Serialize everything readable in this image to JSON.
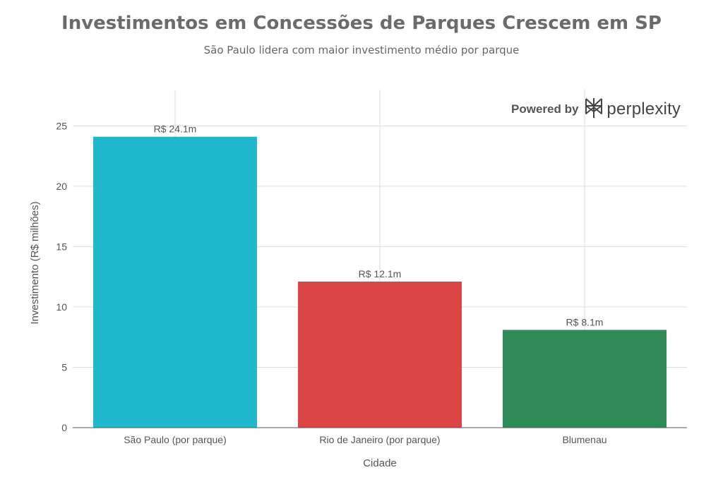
{
  "chart_data": {
    "type": "bar",
    "title": "Investimentos em Concessões de Parques Crescem em SP",
    "subtitle": "São Paulo lidera com maior investimento médio por parque",
    "xlabel": "Cidade",
    "ylabel": "Investimento (R$ milhões)",
    "categories": [
      "São Paulo (por parque)",
      "Rio de Janeiro (por parque)",
      "Blumenau"
    ],
    "values": [
      24.1,
      12.1,
      8.1
    ],
    "data_labels": [
      "R$ 24.1m",
      "R$ 12.1m",
      "R$ 8.1m"
    ],
    "colors": [
      "#1fb8cd",
      "#db4545",
      "#2e8b57"
    ],
    "ylim": [
      0,
      28
    ],
    "yticks": [
      0,
      5,
      10,
      15,
      20,
      25
    ],
    "grid": true,
    "legend": "none"
  },
  "branding": {
    "prefix": "Powered by",
    "name": "perplexity",
    "icon": "perplexity-logo-icon"
  }
}
